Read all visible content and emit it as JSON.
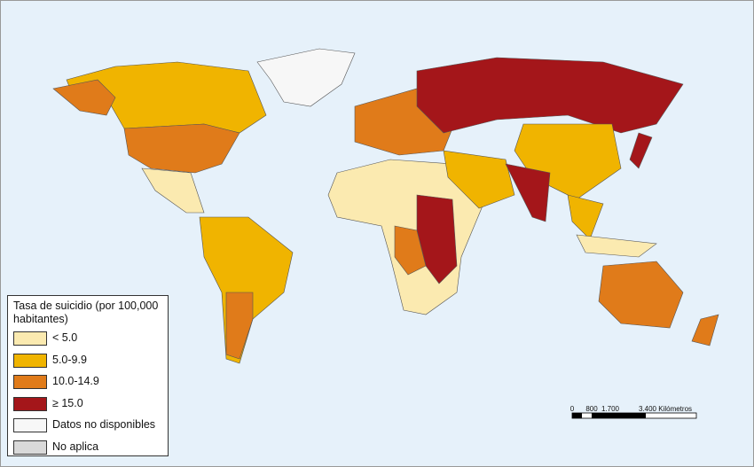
{
  "legend": {
    "title": "Tasa de suicidio (por 100,000 habitantes)",
    "items": [
      {
        "label": "< 5.0",
        "color": "#fbeab0"
      },
      {
        "label": "5.0-9.9",
        "color": "#f0b400"
      },
      {
        "label": "10.0-14.9",
        "color": "#e07b1a"
      },
      {
        "label": "≥ 15.0",
        "color": "#a4161a"
      },
      {
        "label": "Datos no disponibles",
        "color": "#f7f7f7"
      },
      {
        "label": "No aplica",
        "color": "#d9d9d9"
      }
    ]
  },
  "scale_bar": {
    "labels": [
      "0",
      "800",
      "1.700",
      "3.400 Kilómetros"
    ]
  }
}
